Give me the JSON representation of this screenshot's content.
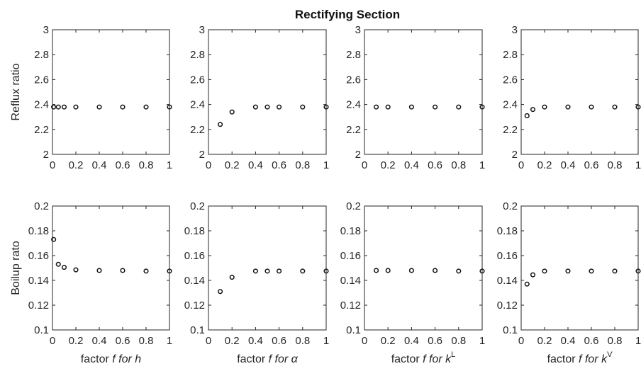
{
  "figure_title": "Rectifying Section",
  "chart_data": [
    {
      "type": "scatter",
      "row": "Reflux ratio",
      "ylabel": "Reflux ratio",
      "xlabel": "",
      "xlim": [
        0,
        1
      ],
      "ylim": [
        2,
        3
      ],
      "xticks": [
        "0",
        "0.2",
        "0.4",
        "0.6",
        "0.8",
        "1"
      ],
      "yticks": [
        "2",
        "2.2",
        "2.4",
        "2.6",
        "2.8",
        "3"
      ],
      "series": [
        {
          "x": [
            0.01,
            0.05,
            0.1,
            0.2,
            0.4,
            0.6,
            0.8,
            1.0
          ],
          "y": [
            2.38,
            2.38,
            2.38,
            2.38,
            2.38,
            2.38,
            2.38,
            2.38
          ]
        }
      ]
    },
    {
      "type": "scatter",
      "ylabel": "",
      "xlabel": "",
      "xlim": [
        0,
        1
      ],
      "ylim": [
        2,
        3
      ],
      "xticks": [
        "0",
        "0.2",
        "0.4",
        "0.6",
        "0.8",
        "1"
      ],
      "yticks": [
        "2",
        "2.2",
        "2.4",
        "2.6",
        "2.8",
        "3"
      ],
      "series": [
        {
          "x": [
            0.1,
            0.2,
            0.4,
            0.5,
            0.6,
            0.8,
            1.0
          ],
          "y": [
            2.24,
            2.34,
            2.38,
            2.38,
            2.38,
            2.38,
            2.38
          ]
        }
      ]
    },
    {
      "type": "scatter",
      "ylabel": "",
      "xlabel": "",
      "xlim": [
        0,
        1
      ],
      "ylim": [
        2,
        3
      ],
      "xticks": [
        "0",
        "0.2",
        "0.4",
        "0.6",
        "0.8",
        "1"
      ],
      "yticks": [
        "2",
        "2.2",
        "2.4",
        "2.6",
        "2.8",
        "3"
      ],
      "series": [
        {
          "x": [
            0.1,
            0.2,
            0.4,
            0.6,
            0.8,
            1.0
          ],
          "y": [
            2.38,
            2.38,
            2.38,
            2.38,
            2.38,
            2.38
          ]
        }
      ]
    },
    {
      "type": "scatter",
      "ylabel": "",
      "xlabel": "",
      "xlim": [
        0,
        1
      ],
      "ylim": [
        2,
        3
      ],
      "xticks": [
        "0",
        "0.2",
        "0.4",
        "0.6",
        "0.8",
        "1"
      ],
      "yticks": [
        "2",
        "2.2",
        "2.4",
        "2.6",
        "2.8",
        "3"
      ],
      "series": [
        {
          "x": [
            0.05,
            0.1,
            0.2,
            0.4,
            0.6,
            0.8,
            1.0
          ],
          "y": [
            2.31,
            2.36,
            2.38,
            2.38,
            2.38,
            2.38,
            2.38
          ]
        }
      ]
    },
    {
      "type": "scatter",
      "ylabel": "Boilup rato",
      "xlabel": {
        "pre": "factor ",
        "f": "f",
        "mid": " for ",
        "sym": "h",
        "sup": ""
      },
      "xlim": [
        0,
        1
      ],
      "ylim": [
        0.1,
        0.2
      ],
      "xticks": [
        "0",
        "0.2",
        "0.4",
        "0.6",
        "0.8",
        "1"
      ],
      "yticks": [
        "0.1",
        "0.12",
        "0.14",
        "0.16",
        "0.18",
        "0.2"
      ],
      "series": [
        {
          "x": [
            0.01,
            0.05,
            0.1,
            0.2,
            0.4,
            0.6,
            0.8,
            1.0
          ],
          "y": [
            0.173,
            0.153,
            0.1505,
            0.1485,
            0.148,
            0.148,
            0.1475,
            0.1475
          ]
        }
      ]
    },
    {
      "type": "scatter",
      "ylabel": "",
      "xlabel": {
        "pre": "factor ",
        "f": "f",
        "mid": " for ",
        "sym": "α",
        "sup": ""
      },
      "xlim": [
        0,
        1
      ],
      "ylim": [
        0.1,
        0.2
      ],
      "xticks": [
        "0",
        "0.2",
        "0.4",
        "0.6",
        "0.8",
        "1"
      ],
      "yticks": [
        "0.1",
        "0.12",
        "0.14",
        "0.16",
        "0.18",
        "0.2"
      ],
      "series": [
        {
          "x": [
            0.1,
            0.2,
            0.4,
            0.5,
            0.6,
            0.8,
            1.0
          ],
          "y": [
            0.131,
            0.1425,
            0.1475,
            0.1475,
            0.1475,
            0.1475,
            0.1475
          ]
        }
      ]
    },
    {
      "type": "scatter",
      "ylabel": "",
      "xlabel": {
        "pre": "factor ",
        "f": "f",
        "mid": " for ",
        "sym": "k",
        "sup": "L"
      },
      "xlim": [
        0,
        1
      ],
      "ylim": [
        0.1,
        0.2
      ],
      "xticks": [
        "0",
        "0.2",
        "0.4",
        "0.6",
        "0.8",
        "1"
      ],
      "yticks": [
        "0.1",
        "0.12",
        "0.14",
        "0.16",
        "0.18",
        "0.2"
      ],
      "series": [
        {
          "x": [
            0.1,
            0.2,
            0.4,
            0.6,
            0.8,
            1.0
          ],
          "y": [
            0.148,
            0.148,
            0.148,
            0.148,
            0.1475,
            0.1475
          ]
        }
      ]
    },
    {
      "type": "scatter",
      "ylabel": "",
      "xlabel": {
        "pre": "factor ",
        "f": "f",
        "mid": " for ",
        "sym": "k",
        "sup": "V"
      },
      "xlim": [
        0,
        1
      ],
      "ylim": [
        0.1,
        0.2
      ],
      "xticks": [
        "0",
        "0.2",
        "0.4",
        "0.6",
        "0.8",
        "1"
      ],
      "yticks": [
        "0.1",
        "0.12",
        "0.14",
        "0.16",
        "0.18",
        "0.2"
      ],
      "series": [
        {
          "x": [
            0.05,
            0.1,
            0.2,
            0.4,
            0.6,
            0.8,
            1.0
          ],
          "y": [
            0.137,
            0.1445,
            0.1475,
            0.1475,
            0.1475,
            0.1475,
            0.1475
          ]
        }
      ]
    }
  ]
}
